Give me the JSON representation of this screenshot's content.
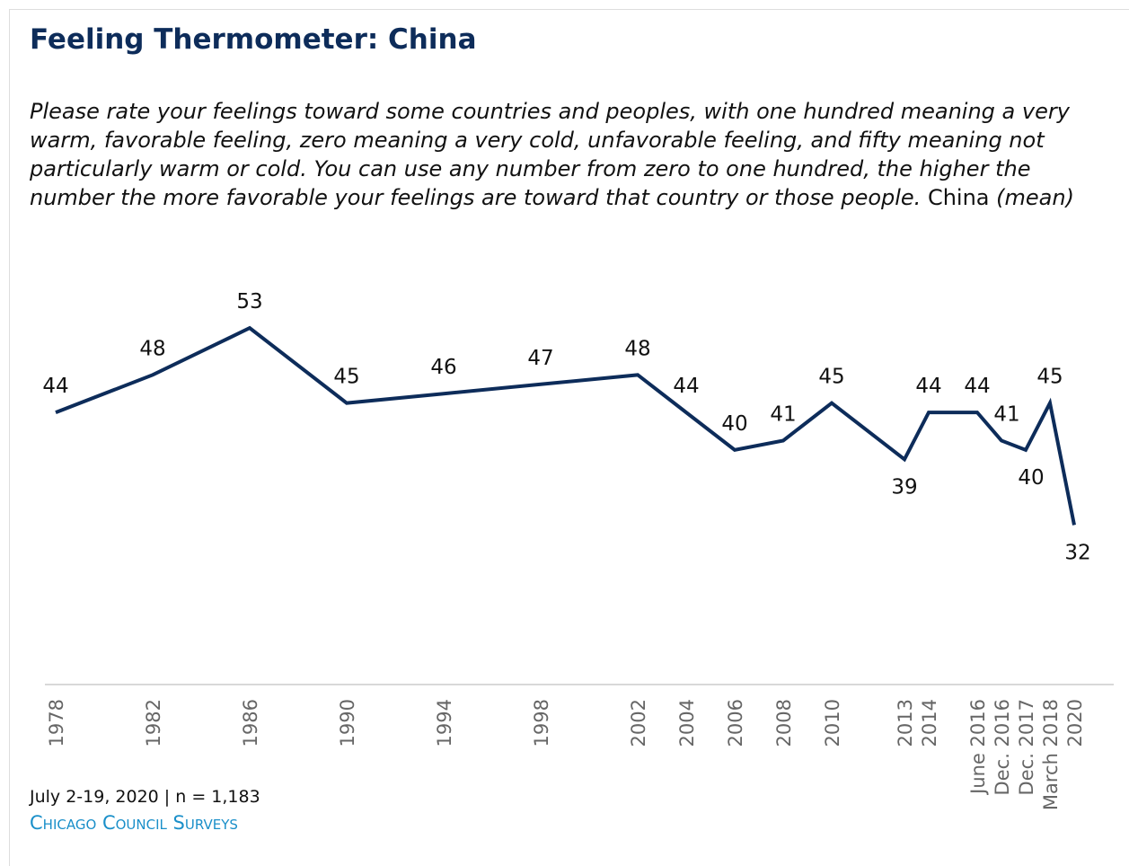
{
  "chart_data": {
    "type": "line",
    "title": "Feeling Thermometer: China",
    "subtitle": "Please rate your feelings toward some countries and peoples, with one hundred meaning a very warm, favorable feeling, zero meaning a very cold, unfavorable feeling, and fifty meaning not particularly warm or cold. You can use any number from zero to one hundred, the higher the number the more favorable your feelings are toward that country or those people.",
    "subtitle_emphasis": "China",
    "subtitle_end": "(mean)",
    "categories": [
      "1978",
      "1982",
      "1986",
      "1990",
      "1994",
      "1998",
      "2002",
      "2004",
      "2006",
      "2008",
      "2010",
      "2013",
      "2014",
      "June 2016",
      "Dec. 2016",
      "Dec. 2017",
      "March 2018",
      "2020"
    ],
    "values": [
      44,
      48,
      53,
      45,
      46,
      47,
      48,
      44,
      40,
      41,
      45,
      39,
      44,
      44,
      41,
      40,
      45,
      32
    ],
    "color": "#0d2c5a",
    "ylim": [
      15,
      60
    ],
    "note": "July 2-19, 2020 | n = 1,183",
    "source": "Chicago Council Surveys"
  }
}
